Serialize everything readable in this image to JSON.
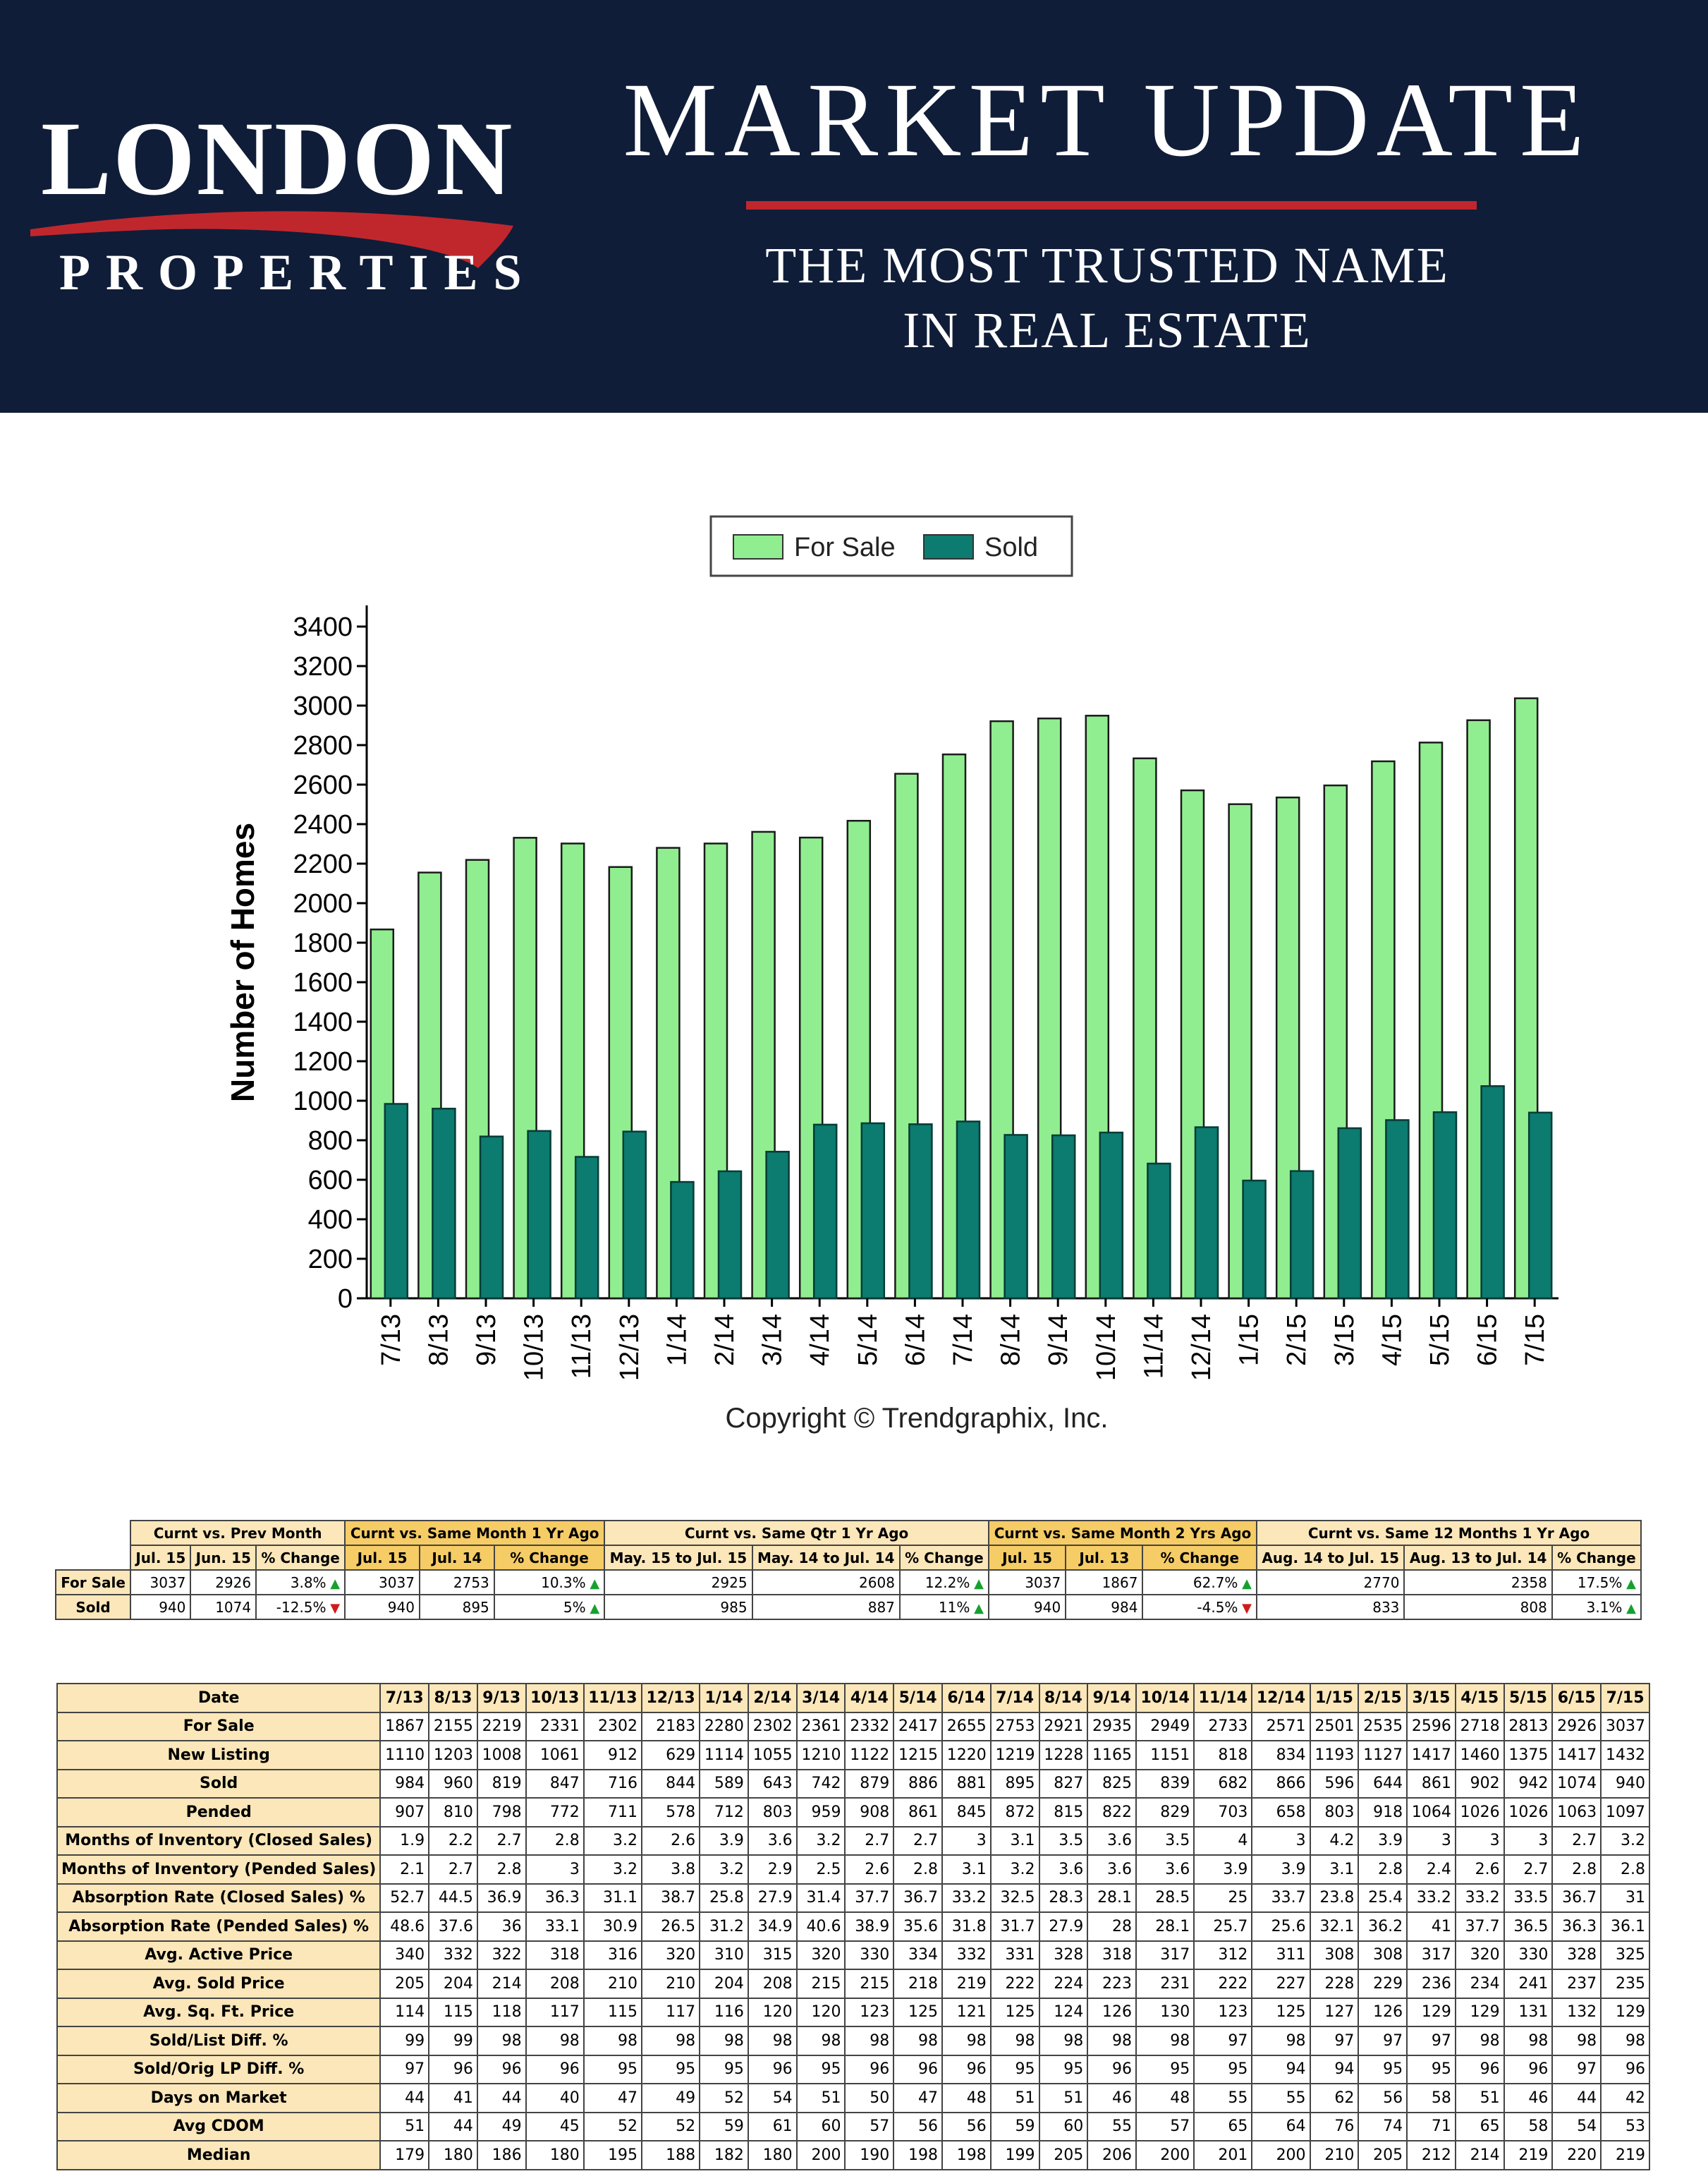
{
  "header": {
    "logo_main": "LONDON",
    "logo_sub": "PROPERTIES",
    "title": "MARKET UPDATE",
    "tagline_line1": "THE MOST TRUSTED NAME",
    "tagline_line2": "IN REAL ESTATE",
    "colors": {
      "background": "#0f1d38",
      "accent": "#c0272d"
    }
  },
  "chart_data": {
    "type": "bar",
    "categories": [
      "7/13",
      "8/13",
      "9/13",
      "10/13",
      "11/13",
      "12/13",
      "1/14",
      "2/14",
      "3/14",
      "4/14",
      "5/14",
      "6/14",
      "7/14",
      "8/14",
      "9/14",
      "10/14",
      "11/14",
      "12/14",
      "1/15",
      "2/15",
      "3/15",
      "4/15",
      "5/15",
      "6/15",
      "7/15"
    ],
    "series": [
      {
        "name": "For Sale",
        "color": "#90ee90",
        "values": [
          1867,
          2155,
          2219,
          2331,
          2302,
          2183,
          2280,
          2302,
          2361,
          2332,
          2417,
          2655,
          2753,
          2921,
          2935,
          2949,
          2733,
          2571,
          2501,
          2535,
          2596,
          2718,
          2813,
          2926,
          3037
        ]
      },
      {
        "name": "Sold",
        "color": "#0c7b70",
        "values": [
          984,
          960,
          819,
          847,
          716,
          844,
          589,
          643,
          742,
          879,
          886,
          881,
          895,
          827,
          825,
          839,
          682,
          866,
          596,
          644,
          861,
          902,
          942,
          1074,
          940
        ]
      }
    ],
    "ylabel": "Number of Homes",
    "xlabel": "",
    "ylim": [
      0,
      3400
    ],
    "yticks": [
      0,
      200,
      400,
      600,
      800,
      1000,
      1200,
      1400,
      1600,
      1800,
      2000,
      2200,
      2400,
      2600,
      2800,
      3000,
      3200,
      3400
    ],
    "legend_position": "top-center",
    "grid": false
  },
  "copyright": "Copyright © Trendgraphix, Inc.",
  "summary": {
    "groups": [
      "Curnt vs. Prev Month",
      "Curnt vs. Same Month 1 Yr Ago",
      "Curnt vs. Same Qtr 1 Yr Ago",
      "Curnt vs. Same Month 2 Yrs Ago",
      "Curnt vs. Same 12 Months 1 Yr Ago"
    ],
    "subheaders": [
      "Jul. 15",
      "Jun. 15",
      "% Change",
      "Jul. 15",
      "Jul. 14",
      "% Change",
      "May. 15 to Jul. 15",
      "May. 14 to Jul. 14",
      "% Change",
      "Jul. 15",
      "Jul. 13",
      "% Change",
      "Aug. 14 to Jul. 15",
      "Aug. 13 to Jul. 14",
      "% Change"
    ],
    "rows": [
      {
        "label": "For Sale",
        "cells": [
          "3037",
          "2926",
          "3.8%",
          "3037",
          "2753",
          "10.3%",
          "2925",
          "2608",
          "12.2%",
          "3037",
          "1867",
          "62.7%",
          "2770",
          "2358",
          "17.5%"
        ],
        "dirs": [
          "up",
          "up",
          "up",
          "up",
          "up"
        ]
      },
      {
        "label": "Sold",
        "cells": [
          "940",
          "1074",
          "-12.5%",
          "940",
          "895",
          "5%",
          "985",
          "887",
          "11%",
          "940",
          "984",
          "-4.5%",
          "833",
          "808",
          "3.1%"
        ],
        "dirs": [
          "down",
          "up",
          "up",
          "down",
          "up"
        ]
      }
    ]
  },
  "detail": {
    "header_label": "Date",
    "columns": [
      "7/13",
      "8/13",
      "9/13",
      "10/13",
      "11/13",
      "12/13",
      "1/14",
      "2/14",
      "3/14",
      "4/14",
      "5/14",
      "6/14",
      "7/14",
      "8/14",
      "9/14",
      "10/14",
      "11/14",
      "12/14",
      "1/15",
      "2/15",
      "3/15",
      "4/15",
      "5/15",
      "6/15",
      "7/15"
    ],
    "rows": [
      {
        "label": "For Sale",
        "values": [
          "1867",
          "2155",
          "2219",
          "2331",
          "2302",
          "2183",
          "2280",
          "2302",
          "2361",
          "2332",
          "2417",
          "2655",
          "2753",
          "2921",
          "2935",
          "2949",
          "2733",
          "2571",
          "2501",
          "2535",
          "2596",
          "2718",
          "2813",
          "2926",
          "3037"
        ]
      },
      {
        "label": "New Listing",
        "values": [
          "1110",
          "1203",
          "1008",
          "1061",
          "912",
          "629",
          "1114",
          "1055",
          "1210",
          "1122",
          "1215",
          "1220",
          "1219",
          "1228",
          "1165",
          "1151",
          "818",
          "834",
          "1193",
          "1127",
          "1417",
          "1460",
          "1375",
          "1417",
          "1432"
        ]
      },
      {
        "label": "Sold",
        "values": [
          "984",
          "960",
          "819",
          "847",
          "716",
          "844",
          "589",
          "643",
          "742",
          "879",
          "886",
          "881",
          "895",
          "827",
          "825",
          "839",
          "682",
          "866",
          "596",
          "644",
          "861",
          "902",
          "942",
          "1074",
          "940"
        ]
      },
      {
        "label": "Pended",
        "values": [
          "907",
          "810",
          "798",
          "772",
          "711",
          "578",
          "712",
          "803",
          "959",
          "908",
          "861",
          "845",
          "872",
          "815",
          "822",
          "829",
          "703",
          "658",
          "803",
          "918",
          "1064",
          "1026",
          "1026",
          "1063",
          "1097"
        ]
      },
      {
        "label": "Months of Inventory (Closed Sales)",
        "values": [
          "1.9",
          "2.2",
          "2.7",
          "2.8",
          "3.2",
          "2.6",
          "3.9",
          "3.6",
          "3.2",
          "2.7",
          "2.7",
          "3",
          "3.1",
          "3.5",
          "3.6",
          "3.5",
          "4",
          "3",
          "4.2",
          "3.9",
          "3",
          "3",
          "3",
          "2.7",
          "3.2"
        ]
      },
      {
        "label": "Months of Inventory (Pended Sales)",
        "values": [
          "2.1",
          "2.7",
          "2.8",
          "3",
          "3.2",
          "3.8",
          "3.2",
          "2.9",
          "2.5",
          "2.6",
          "2.8",
          "3.1",
          "3.2",
          "3.6",
          "3.6",
          "3.6",
          "3.9",
          "3.9",
          "3.1",
          "2.8",
          "2.4",
          "2.6",
          "2.7",
          "2.8",
          "2.8"
        ]
      },
      {
        "label": "Absorption Rate (Closed Sales) %",
        "values": [
          "52.7",
          "44.5",
          "36.9",
          "36.3",
          "31.1",
          "38.7",
          "25.8",
          "27.9",
          "31.4",
          "37.7",
          "36.7",
          "33.2",
          "32.5",
          "28.3",
          "28.1",
          "28.5",
          "25",
          "33.7",
          "23.8",
          "25.4",
          "33.2",
          "33.2",
          "33.5",
          "36.7",
          "31"
        ]
      },
      {
        "label": "Absorption Rate (Pended Sales) %",
        "values": [
          "48.6",
          "37.6",
          "36",
          "33.1",
          "30.9",
          "26.5",
          "31.2",
          "34.9",
          "40.6",
          "38.9",
          "35.6",
          "31.8",
          "31.7",
          "27.9",
          "28",
          "28.1",
          "25.7",
          "25.6",
          "32.1",
          "36.2",
          "41",
          "37.7",
          "36.5",
          "36.3",
          "36.1"
        ]
      },
      {
        "label": "Avg. Active Price",
        "values": [
          "340",
          "332",
          "322",
          "318",
          "316",
          "320",
          "310",
          "315",
          "320",
          "330",
          "334",
          "332",
          "331",
          "328",
          "318",
          "317",
          "312",
          "311",
          "308",
          "308",
          "317",
          "320",
          "330",
          "328",
          "325"
        ]
      },
      {
        "label": "Avg. Sold Price",
        "values": [
          "205",
          "204",
          "214",
          "208",
          "210",
          "210",
          "204",
          "208",
          "215",
          "215",
          "218",
          "219",
          "222",
          "224",
          "223",
          "231",
          "222",
          "227",
          "228",
          "229",
          "236",
          "234",
          "241",
          "237",
          "235"
        ]
      },
      {
        "label": "Avg. Sq. Ft. Price",
        "values": [
          "114",
          "115",
          "118",
          "117",
          "115",
          "117",
          "116",
          "120",
          "120",
          "123",
          "125",
          "121",
          "125",
          "124",
          "126",
          "130",
          "123",
          "125",
          "127",
          "126",
          "129",
          "129",
          "131",
          "132",
          "129"
        ]
      },
      {
        "label": "Sold/List Diff. %",
        "values": [
          "99",
          "99",
          "98",
          "98",
          "98",
          "98",
          "98",
          "98",
          "98",
          "98",
          "98",
          "98",
          "98",
          "98",
          "98",
          "98",
          "97",
          "98",
          "97",
          "97",
          "97",
          "98",
          "98",
          "98",
          "98"
        ]
      },
      {
        "label": "Sold/Orig LP Diff. %",
        "values": [
          "97",
          "96",
          "96",
          "96",
          "95",
          "95",
          "95",
          "96",
          "95",
          "96",
          "96",
          "96",
          "95",
          "95",
          "96",
          "95",
          "95",
          "94",
          "94",
          "95",
          "95",
          "96",
          "96",
          "97",
          "96"
        ]
      },
      {
        "label": "Days on Market",
        "values": [
          "44",
          "41",
          "44",
          "40",
          "47",
          "49",
          "52",
          "54",
          "51",
          "50",
          "47",
          "48",
          "51",
          "51",
          "46",
          "48",
          "55",
          "55",
          "62",
          "56",
          "58",
          "51",
          "46",
          "44",
          "42"
        ]
      },
      {
        "label": "Avg CDOM",
        "values": [
          "51",
          "44",
          "49",
          "45",
          "52",
          "52",
          "59",
          "61",
          "60",
          "57",
          "56",
          "56",
          "59",
          "60",
          "55",
          "57",
          "65",
          "64",
          "76",
          "74",
          "71",
          "65",
          "58",
          "54",
          "53"
        ]
      },
      {
        "label": "Median",
        "values": [
          "179",
          "180",
          "186",
          "180",
          "195",
          "188",
          "182",
          "180",
          "200",
          "190",
          "198",
          "198",
          "199",
          "205",
          "206",
          "200",
          "201",
          "200",
          "210",
          "205",
          "212",
          "214",
          "219",
          "220",
          "219"
        ]
      }
    ]
  }
}
